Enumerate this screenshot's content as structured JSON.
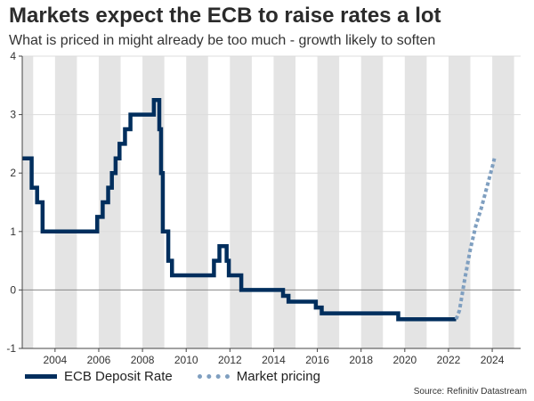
{
  "title": "Markets expect the ECB to raise rates a lot",
  "subtitle": "What is priced in might already be too much - growth likely to soften",
  "source": "Source: Refinitiv Datastream",
  "colors": {
    "deposit": "#002e5d",
    "market": "#7f9fc0",
    "band": "#e4e4e4",
    "grid": "#dcdcdc",
    "zero": "#888888"
  },
  "chart_data": {
    "type": "line",
    "title": "Markets expect the ECB to raise rates a lot",
    "xlabel": "",
    "ylabel": "",
    "xlim": [
      2002.5,
      2025.3
    ],
    "ylim": [
      -1,
      4
    ],
    "x_ticks": [
      2004,
      2006,
      2008,
      2010,
      2012,
      2014,
      2016,
      2018,
      2020,
      2022,
      2024
    ],
    "y_ticks": [
      -1,
      0,
      1,
      2,
      3,
      4
    ],
    "shaded_years": [
      2002,
      2004,
      2006,
      2008,
      2010,
      2012,
      2014,
      2016,
      2018,
      2020,
      2022,
      2024
    ],
    "legend_position": "bottom-left",
    "series": [
      {
        "name": "ECB Deposit Rate",
        "style": "solid",
        "points": [
          [
            2002.5,
            2.25
          ],
          [
            2002.93,
            2.25
          ],
          [
            2002.93,
            1.75
          ],
          [
            2003.18,
            1.75
          ],
          [
            2003.18,
            1.5
          ],
          [
            2003.43,
            1.5
          ],
          [
            2003.43,
            1.0
          ],
          [
            2005.93,
            1.0
          ],
          [
            2005.93,
            1.25
          ],
          [
            2006.18,
            1.25
          ],
          [
            2006.18,
            1.5
          ],
          [
            2006.43,
            1.5
          ],
          [
            2006.43,
            1.75
          ],
          [
            2006.6,
            1.75
          ],
          [
            2006.6,
            2.0
          ],
          [
            2006.77,
            2.0
          ],
          [
            2006.77,
            2.25
          ],
          [
            2006.95,
            2.25
          ],
          [
            2006.95,
            2.5
          ],
          [
            2007.2,
            2.5
          ],
          [
            2007.2,
            2.75
          ],
          [
            2007.45,
            2.75
          ],
          [
            2007.45,
            3.0
          ],
          [
            2008.52,
            3.0
          ],
          [
            2008.52,
            3.25
          ],
          [
            2008.77,
            3.25
          ],
          [
            2008.77,
            2.75
          ],
          [
            2008.85,
            2.75
          ],
          [
            2008.85,
            2.0
          ],
          [
            2008.93,
            2.0
          ],
          [
            2008.93,
            1.0
          ],
          [
            2009.18,
            1.0
          ],
          [
            2009.18,
            0.5
          ],
          [
            2009.35,
            0.5
          ],
          [
            2009.35,
            0.25
          ],
          [
            2011.27,
            0.25
          ],
          [
            2011.27,
            0.5
          ],
          [
            2011.52,
            0.5
          ],
          [
            2011.52,
            0.75
          ],
          [
            2011.85,
            0.75
          ],
          [
            2011.85,
            0.5
          ],
          [
            2011.95,
            0.5
          ],
          [
            2011.95,
            0.25
          ],
          [
            2012.52,
            0.25
          ],
          [
            2012.52,
            0.0
          ],
          [
            2014.43,
            0.0
          ],
          [
            2014.43,
            -0.1
          ],
          [
            2014.68,
            -0.1
          ],
          [
            2014.68,
            -0.2
          ],
          [
            2015.93,
            -0.2
          ],
          [
            2015.93,
            -0.3
          ],
          [
            2016.2,
            -0.3
          ],
          [
            2016.2,
            -0.4
          ],
          [
            2019.7,
            -0.4
          ],
          [
            2019.7,
            -0.5
          ],
          [
            2022.35,
            -0.5
          ]
        ]
      },
      {
        "name": "Market pricing",
        "style": "dotted",
        "points": [
          [
            2022.35,
            -0.5
          ],
          [
            2022.5,
            -0.35
          ],
          [
            2022.75,
            0.2
          ],
          [
            2023.0,
            0.7
          ],
          [
            2023.25,
            1.1
          ],
          [
            2023.5,
            1.4
          ],
          [
            2023.75,
            1.75
          ],
          [
            2024.0,
            2.1
          ],
          [
            2024.1,
            2.25
          ]
        ]
      }
    ]
  }
}
